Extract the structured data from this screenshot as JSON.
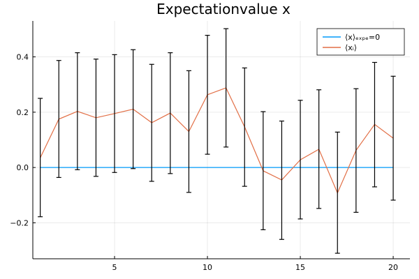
{
  "chart_data": {
    "type": "line",
    "title": "Expectationvalue x",
    "xlabel": "",
    "ylabel": "",
    "xlim": [
      0.6,
      20.9
    ],
    "ylim": [
      -0.33,
      0.53
    ],
    "xticks": [
      5,
      10,
      15,
      20
    ],
    "yticks": [
      -0.2,
      0.0,
      0.2,
      0.4
    ],
    "xtick_labels": [
      "5",
      "10",
      "15",
      "20"
    ],
    "ytick_labels": [
      "−0.2",
      "0.0",
      "0.2",
      "0.4"
    ],
    "grid": true,
    "legend_position": "top-right",
    "x": [
      1,
      2,
      3,
      4,
      5,
      6,
      7,
      8,
      9,
      10,
      11,
      12,
      13,
      14,
      15,
      16,
      17,
      18,
      19,
      20
    ],
    "series": [
      {
        "name": "⟨x⟩ₑₓₚₑ=0",
        "color": "#009AFA",
        "values": [
          0,
          0,
          0,
          0,
          0,
          0,
          0,
          0,
          0,
          0,
          0,
          0,
          0,
          0,
          0,
          0,
          0,
          0,
          0,
          0
        ]
      },
      {
        "name": "⟨xᵢ⟩",
        "color": "#E26F46",
        "values": [
          0.035,
          0.175,
          0.203,
          0.18,
          0.195,
          0.211,
          0.162,
          0.197,
          0.13,
          0.263,
          0.288,
          0.147,
          -0.012,
          -0.045,
          0.028,
          0.066,
          -0.092,
          0.062,
          0.156,
          0.106
        ],
        "error_low": [
          -0.178,
          -0.036,
          -0.008,
          -0.032,
          -0.018,
          -0.004,
          -0.05,
          -0.022,
          -0.09,
          0.048,
          0.074,
          -0.068,
          -0.225,
          -0.26,
          -0.186,
          -0.148,
          -0.31,
          -0.162,
          -0.07,
          -0.118
        ],
        "error_high": [
          0.25,
          0.387,
          0.415,
          0.392,
          0.408,
          0.426,
          0.373,
          0.415,
          0.35,
          0.478,
          0.502,
          0.36,
          0.202,
          0.168,
          0.243,
          0.281,
          0.128,
          0.285,
          0.38,
          0.33
        ],
        "error_color": "#000000"
      }
    ]
  }
}
